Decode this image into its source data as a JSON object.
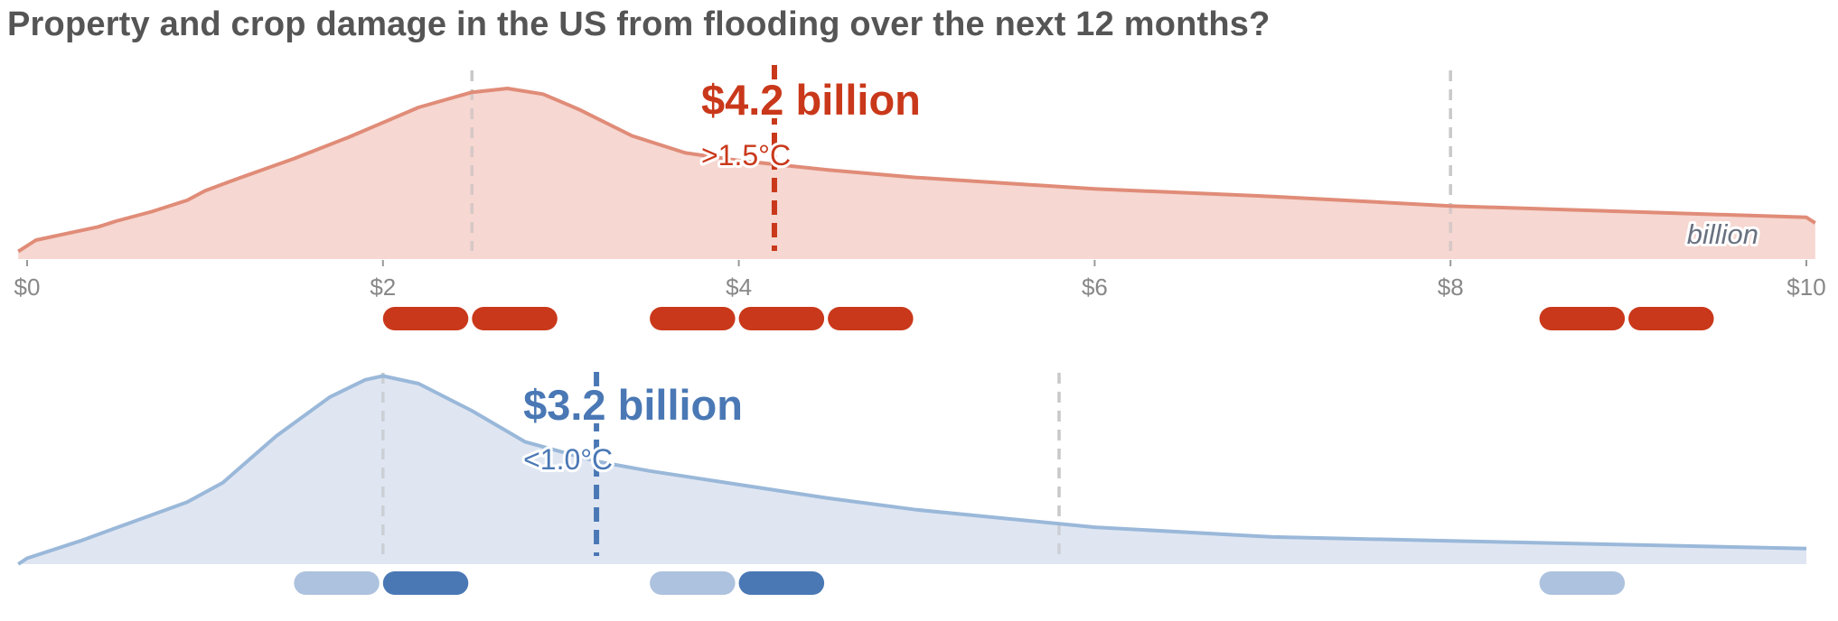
{
  "title": "Property and crop damage in the US from flooding over the next 12 months?",
  "chart_data": {
    "type": "area",
    "title": "Property and crop damage in the US from flooding over the next 12 months?",
    "x_unit": "billion",
    "xlim": [
      0,
      10
    ],
    "x_ticks": [
      {
        "value": 0,
        "label": "$0"
      },
      {
        "value": 2,
        "label": "$2"
      },
      {
        "value": 4,
        "label": "$4"
      },
      {
        "value": 6,
        "label": "$6"
      },
      {
        "value": 8,
        "label": "$8"
      },
      {
        "value": 10,
        "label": "$10"
      }
    ],
    "series": [
      {
        "name": ">1.5°C",
        "color": "#c9381a",
        "line_color": "#e08c78",
        "fill_color": "#f5d5cf",
        "median": 4.2,
        "median_label": "$4.2 billion",
        "quantiles": [
          2.5,
          8.0
        ],
        "x": [
          -0.05,
          0.05,
          0.2,
          0.4,
          0.5,
          0.7,
          0.9,
          1.0,
          1.2,
          1.5,
          1.8,
          2.0,
          2.2,
          2.5,
          2.7,
          2.9,
          3.1,
          3.4,
          3.7,
          4.0,
          4.2,
          4.5,
          5.0,
          5.5,
          6.0,
          7.0,
          8.0,
          9.0,
          10.0,
          10.05
        ],
        "y": [
          0.04,
          0.1,
          0.13,
          0.17,
          0.2,
          0.25,
          0.31,
          0.36,
          0.43,
          0.53,
          0.64,
          0.72,
          0.8,
          0.88,
          0.9,
          0.87,
          0.79,
          0.65,
          0.56,
          0.52,
          0.5,
          0.47,
          0.43,
          0.4,
          0.37,
          0.33,
          0.28,
          0.25,
          0.22,
          0.19
        ],
        "pills": [
          {
            "from": 2.0,
            "to": 2.48,
            "opacity": 1
          },
          {
            "from": 2.5,
            "to": 2.98,
            "opacity": 1
          },
          {
            "from": 3.5,
            "to": 3.98,
            "opacity": 1
          },
          {
            "from": 4.0,
            "to": 4.48,
            "opacity": 1
          },
          {
            "from": 4.5,
            "to": 4.98,
            "opacity": 1
          },
          {
            "from": 8.5,
            "to": 8.98,
            "opacity": 1
          },
          {
            "from": 9.0,
            "to": 9.48,
            "opacity": 1
          }
        ]
      },
      {
        "name": "<1.0°C",
        "color": "#4a78b5",
        "line_color": "#9ab8d9",
        "fill_color": "#dde5f1",
        "median": 3.2,
        "median_label": "$3.2 billion",
        "quantiles": [
          2.0,
          5.8
        ],
        "x": [
          -0.05,
          0.0,
          0.3,
          0.6,
          0.9,
          1.1,
          1.4,
          1.7,
          1.9,
          2.0,
          2.2,
          2.5,
          2.8,
          3.2,
          3.5,
          4.0,
          4.5,
          5.0,
          6.0,
          7.0,
          8.0,
          9.0,
          10.0
        ],
        "y": [
          0.0,
          0.03,
          0.12,
          0.22,
          0.32,
          0.42,
          0.66,
          0.86,
          0.95,
          0.97,
          0.93,
          0.79,
          0.63,
          0.53,
          0.48,
          0.41,
          0.34,
          0.28,
          0.19,
          0.14,
          0.12,
          0.1,
          0.08
        ],
        "pills": [
          {
            "from": 1.5,
            "to": 1.98,
            "opacity": 0.45
          },
          {
            "from": 2.0,
            "to": 2.48,
            "opacity": 1
          },
          {
            "from": 3.5,
            "to": 3.98,
            "opacity": 0.45
          },
          {
            "from": 4.0,
            "to": 4.48,
            "opacity": 1
          },
          {
            "from": 8.5,
            "to": 8.98,
            "opacity": 0.45
          }
        ]
      }
    ]
  }
}
